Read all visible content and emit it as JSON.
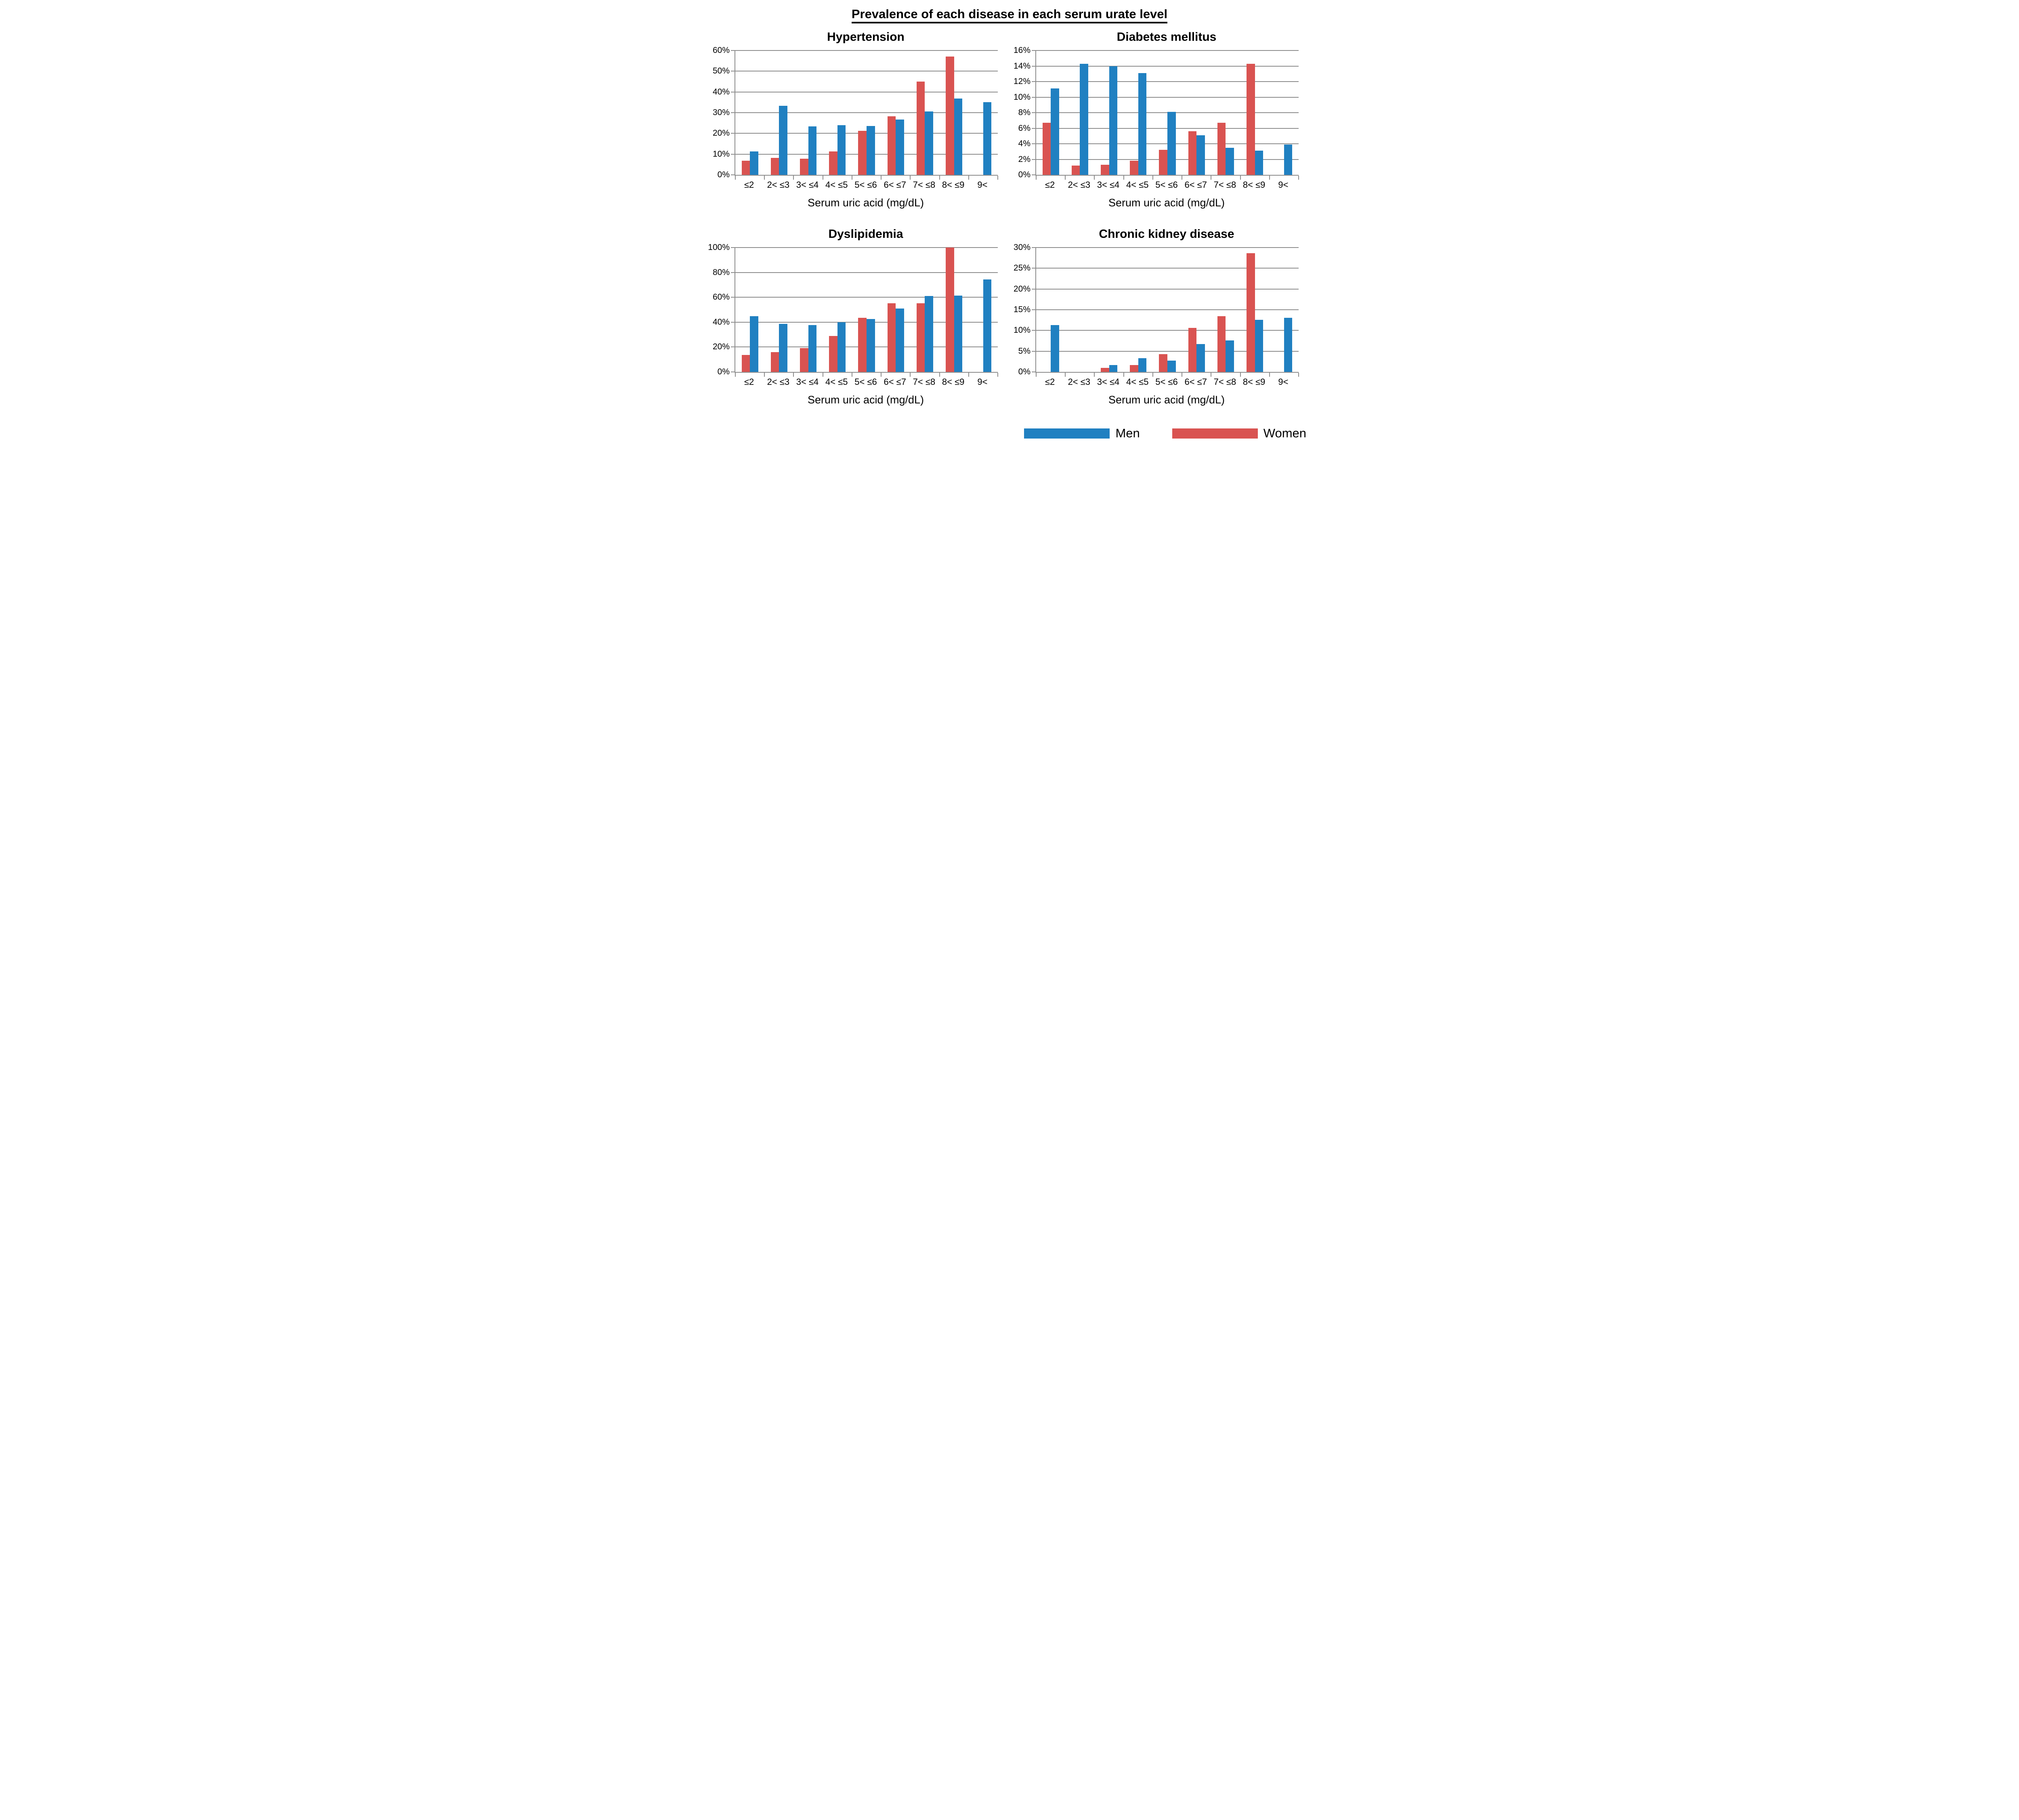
{
  "title": "Prevalence of each disease in each serum urate level",
  "x_axis_title": "Serum uric acid (mg/dL)",
  "categories": [
    "≤2",
    "2< ≤3",
    "3< ≤4",
    "4< ≤5",
    "5< ≤6",
    "6< ≤7",
    "7< ≤8",
    "8< ≤9",
    "9<"
  ],
  "legend": {
    "men": "Men",
    "women": "Women"
  },
  "colors": {
    "men_blue": "#2080c1",
    "women_red": "#d95351",
    "axis_grey": "#8c8c8c",
    "text": "#000000"
  },
  "chart_data": [
    {
      "type": "bar",
      "title": "Hypertension",
      "xlabel": "Serum uric acid (mg/dL)",
      "ylabel": "",
      "ylim": [
        0,
        60
      ],
      "ytick_step": 10,
      "grid": true,
      "categories": [
        "≤2",
        "2< ≤3",
        "3< ≤4",
        "4< ≤5",
        "5< ≤6",
        "6< ≤7",
        "7< ≤8",
        "8< ≤9",
        "9<"
      ],
      "series": [
        {
          "name": "Women",
          "color_key": "women_red",
          "values": [
            6.8,
            8.1,
            7.8,
            11.3,
            21.3,
            28.3,
            45.0,
            57.1,
            0
          ]
        },
        {
          "name": "Men",
          "color_key": "men_blue",
          "values": [
            11.3,
            33.3,
            23.3,
            24.0,
            23.6,
            26.7,
            30.5,
            36.9,
            35.1
          ]
        }
      ]
    },
    {
      "type": "bar",
      "title": "Diabetes mellitus",
      "xlabel": "Serum uric acid (mg/dL)",
      "ylabel": "",
      "ylim": [
        0,
        16
      ],
      "ytick_step": 2,
      "grid": true,
      "categories": [
        "≤2",
        "2< ≤3",
        "3< ≤4",
        "4< ≤5",
        "5< ≤6",
        "6< ≤7",
        "7< ≤8",
        "8< ≤9",
        "9<"
      ],
      "series": [
        {
          "name": "Women",
          "color_key": "women_red",
          "values": [
            6.7,
            1.2,
            1.3,
            1.8,
            3.2,
            5.6,
            6.7,
            14.3,
            0
          ]
        },
        {
          "name": "Men",
          "color_key": "men_blue",
          "values": [
            11.1,
            14.3,
            14.0,
            13.1,
            8.1,
            5.1,
            3.5,
            3.1,
            3.9
          ]
        }
      ]
    },
    {
      "type": "bar",
      "title": "Dyslipidemia",
      "xlabel": "Serum uric acid (mg/dL)",
      "ylabel": "",
      "ylim": [
        0,
        100
      ],
      "ytick_step": 20,
      "grid": true,
      "categories": [
        "≤2",
        "2< ≤3",
        "3< ≤4",
        "4< ≤5",
        "5< ≤6",
        "6< ≤7",
        "7< ≤8",
        "8< ≤9",
        "9<"
      ],
      "series": [
        {
          "name": "Women",
          "color_key": "women_red",
          "values": [
            13.8,
            15.8,
            19.2,
            29.0,
            43.5,
            55.1,
            55.3,
            100.0,
            0
          ]
        },
        {
          "name": "Men",
          "color_key": "men_blue",
          "values": [
            44.8,
            38.6,
            37.8,
            40.0,
            42.6,
            51.0,
            60.9,
            61.5,
            74.2
          ]
        }
      ]
    },
    {
      "type": "bar",
      "title": "Chronic kidney disease",
      "xlabel": "Serum uric acid (mg/dL)",
      "ylabel": "",
      "ylim": [
        0,
        30
      ],
      "ytick_step": 5,
      "grid": true,
      "categories": [
        "≤2",
        "2< ≤3",
        "3< ≤4",
        "4< ≤5",
        "5< ≤6",
        "6< ≤7",
        "7< ≤8",
        "8< ≤9",
        "9<"
      ],
      "series": [
        {
          "name": "Women",
          "color_key": "women_red",
          "values": [
            0,
            0,
            1.0,
            1.7,
            4.3,
            10.6,
            13.4,
            28.6,
            0
          ]
        },
        {
          "name": "Men",
          "color_key": "men_blue",
          "values": [
            11.3,
            0,
            1.7,
            3.3,
            2.7,
            6.7,
            7.6,
            12.6,
            13.1
          ]
        }
      ]
    }
  ]
}
